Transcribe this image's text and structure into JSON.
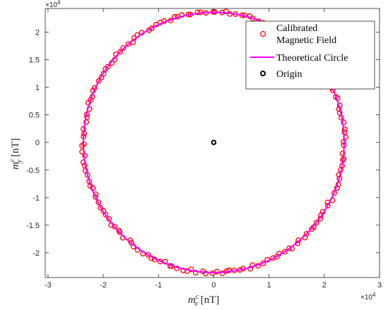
{
  "chart_data": {
    "type": "scatter",
    "title": "",
    "xlabel": {
      "base": "m",
      "sup": "c",
      "sub": "x",
      "unit": "[nT]"
    },
    "ylabel": {
      "base": "m",
      "sup": "c",
      "sub": "y",
      "unit": "[nT]"
    },
    "axis_scale_label": {
      "base": "×10",
      "exp": "4"
    },
    "xlim": [
      -3.05,
      3.0
    ],
    "ylim": [
      -2.45,
      2.43
    ],
    "xticks": [
      -3,
      -2,
      -1,
      0,
      1,
      2,
      3
    ],
    "xtick_labels": [
      "-3",
      "-2",
      "-1",
      "0",
      "1",
      "2",
      "3"
    ],
    "yticks": [
      -2,
      -1.5,
      -1,
      -0.5,
      0,
      0.5,
      1,
      1.5,
      2
    ],
    "ytick_labels": [
      "-2",
      "-1.5",
      "-1",
      "-0.5",
      "0",
      "0.5",
      "1",
      "1.5",
      "2"
    ],
    "grid": false,
    "legend_position": "top-right",
    "circle": {
      "center": [
        0,
        0
      ],
      "radius": 2.36
    },
    "series": [
      {
        "name": "Calibrated Magnetic Field",
        "kind": "scatter",
        "marker": "circle",
        "color": "#ff0000",
        "num_points": 170,
        "noise": 0.03
      },
      {
        "name": "Theoretical Circle",
        "kind": "line",
        "color": "#ff00ff"
      },
      {
        "name": "Origin",
        "kind": "scatter",
        "marker": "circle",
        "color": "#000000",
        "x": [
          0
        ],
        "y": [
          0
        ]
      }
    ],
    "legend": {
      "entries": [
        {
          "series": "Calibrated Magnetic Field",
          "lines": [
            "Calibrated",
            "Magnetic Field"
          ]
        },
        {
          "series": "Theoretical Circle",
          "lines": [
            "Theoretical Circle"
          ]
        },
        {
          "series": "Origin",
          "lines": [
            "Origin"
          ]
        }
      ]
    }
  }
}
